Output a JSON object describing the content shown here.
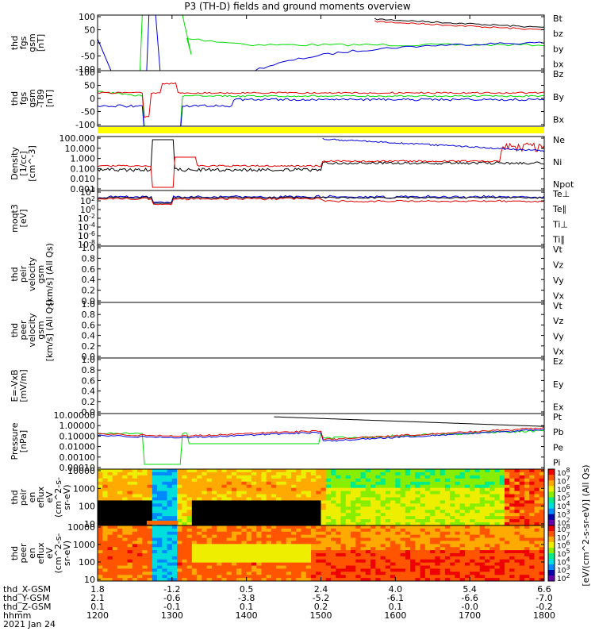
{
  "title": "P3 (TH-D) fields and ground moments overview",
  "colors": {
    "black": "#000000",
    "red": "#e00000",
    "green": "#00dd00",
    "blue": "#0000dd",
    "yellow": "#ffff00"
  },
  "panels": [
    {
      "id": "fgs",
      "ylabel": [
        "thd",
        "fgs",
        "gsm",
        "[nT]"
      ],
      "ticks": [
        "100",
        "50",
        "0",
        "-50",
        "-100"
      ],
      "legend": [
        {
          "t": "Bt",
          "c": "black"
        },
        {
          "t": "bz",
          "c": "red"
        },
        {
          "t": "by",
          "c": "green"
        },
        {
          "t": "bx",
          "c": "blue"
        }
      ]
    },
    {
      "id": "fgs_t89",
      "ylabel": [
        "thd",
        "fgs",
        "gsm",
        "-T89",
        "[nT]"
      ],
      "ticks": [
        "100",
        "50",
        "0",
        "-50",
        "-100"
      ],
      "legend": [
        {
          "t": "Bz",
          "c": "red"
        },
        {
          "t": "By",
          "c": "green"
        },
        {
          "t": "Bx",
          "c": "blue"
        }
      ]
    },
    {
      "id": "density",
      "ylabel": [
        "Density",
        "[1/cc]",
        "[cm^-3]"
      ],
      "ticks": [
        "100.000",
        "10.000",
        "1.000",
        "0.100",
        "0.010",
        "0.001"
      ],
      "legend": [
        {
          "t": "Ne",
          "c": "red"
        },
        {
          "t": "Ni",
          "c": "black"
        },
        {
          "t": "Npot",
          "c": "blue"
        }
      ]
    },
    {
      "id": "temp",
      "ylabel": [
        "moqt3",
        "[eV]"
      ],
      "ticks": [
        "10^4",
        "10^2",
        "10^0",
        "10^-2",
        "10^-4",
        "10^-6",
        "10^-8"
      ],
      "legend": [
        {
          "t": "Te⊥",
          "c": "red"
        },
        {
          "t": "Te∥",
          "c": "black"
        },
        {
          "t": "Ti⊥",
          "c": "blue"
        },
        {
          "t": "Ti∥",
          "c": "green"
        }
      ]
    },
    {
      "id": "peir_vel",
      "ylabel": [
        "thd",
        "peir",
        "velocity",
        "gsm",
        "[km/s] (All Qs)"
      ],
      "ticks": [
        "1.0",
        "0.8",
        "0.6",
        "0.4",
        "0.2",
        "0.0"
      ],
      "legend": [
        {
          "t": "Vt",
          "c": "black"
        },
        {
          "t": "Vz",
          "c": "red"
        },
        {
          "t": "Vy",
          "c": "green"
        },
        {
          "t": "Vx",
          "c": "blue"
        }
      ]
    },
    {
      "id": "peer_vel",
      "ylabel": [
        "thd",
        "peer",
        "velocity",
        "gsm",
        "[km/s] (All Qs)"
      ],
      "ticks": [
        "1.0",
        "0.8",
        "0.6",
        "0.4",
        "0.2",
        "0.0"
      ],
      "legend": [
        {
          "t": "Vt",
          "c": "black"
        },
        {
          "t": "Vz",
          "c": "red"
        },
        {
          "t": "Vy",
          "c": "green"
        },
        {
          "t": "Vx",
          "c": "blue"
        }
      ]
    },
    {
      "id": "efield",
      "ylabel": [
        "E=-VxB",
        "[mV/m]"
      ],
      "ticks": [
        "1.0",
        "0.8",
        "0.6",
        "0.4",
        "0.2",
        "0.0"
      ],
      "legend": [
        {
          "t": "Ez",
          "c": "red"
        },
        {
          "t": "Ey",
          "c": "green"
        },
        {
          "t": "Ex",
          "c": "blue"
        }
      ]
    },
    {
      "id": "pressure",
      "ylabel": [
        "Pressure",
        "[nPa]"
      ],
      "ticks": [
        "10.00000",
        "1.00000",
        "0.10000",
        "0.01000",
        "0.00100",
        "0.00010"
      ],
      "legend": [
        {
          "t": "Pt",
          "c": "black"
        },
        {
          "t": "Pb",
          "c": "red"
        },
        {
          "t": "Pe",
          "c": "green"
        },
        {
          "t": "Pi",
          "c": "blue"
        }
      ]
    },
    {
      "id": "peir_spec",
      "ylabel": [
        "thd",
        "peir",
        "en",
        "eflux",
        "eV",
        "(cm^2-s-",
        "sr-eV)"
      ],
      "ticks": [
        "10000",
        "1000",
        "100",
        "10"
      ],
      "legend": []
    },
    {
      "id": "peer_spec",
      "ylabel": [
        "thd",
        "peer",
        "en",
        "eflux",
        "eV",
        "(cm^2-s-",
        "sr-eV)"
      ],
      "ticks": [
        "10000",
        "1000",
        "100",
        "10"
      ],
      "legend": []
    }
  ],
  "colorbar": {
    "ticks": [
      "10^8",
      "10^7",
      "10^6",
      "10^5",
      "10^4",
      "10^3",
      "10^2"
    ],
    "label": "[eV/(cm^2-s-sr-eV)] (All Qs)"
  },
  "xaxis": {
    "rows": [
      {
        "label": "thd_X-GSM",
        "values": [
          "1.8",
          "-1.2",
          "0.5",
          "2.4",
          "4.0",
          "5.4",
          "6.6"
        ]
      },
      {
        "label": "thd_Y-GSM",
        "values": [
          "2.1",
          "-0.6",
          "-3.8",
          "-5.2",
          "-6.1",
          "-6.6",
          "-7.0"
        ]
      },
      {
        "label": "thd_Z-GSM",
        "values": [
          "0.1",
          "-0.1",
          "0.1",
          "0.2",
          "0.1",
          "-0.0",
          "-0.2"
        ]
      },
      {
        "label": "hhmm",
        "values": [
          "1200",
          "1300",
          "1400",
          "1500",
          "1600",
          "1700",
          "1800"
        ]
      }
    ],
    "date": "2021 Jan 24"
  }
}
